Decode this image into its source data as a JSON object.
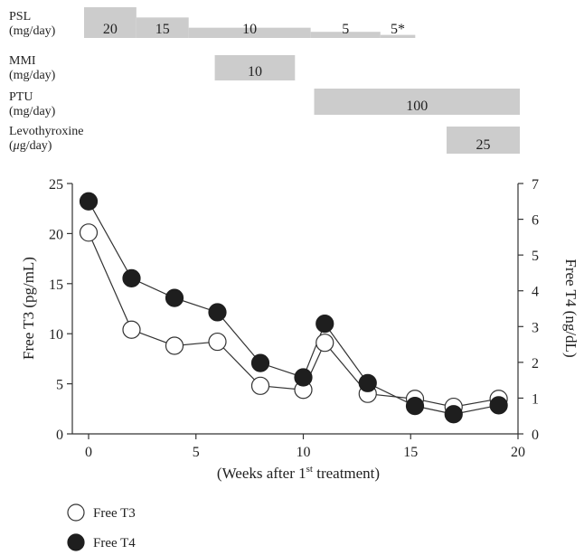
{
  "treatments": [
    {
      "name_line1": "PSL",
      "name_line2": "(mg/day)",
      "segments": [
        {
          "start": 0,
          "end": 3,
          "level": 3,
          "dose": "20"
        },
        {
          "start": 3,
          "end": 6,
          "level": 2,
          "dose": "15"
        },
        {
          "start": 6,
          "end": 13,
          "level": 1,
          "dose": "10"
        },
        {
          "start": 13,
          "end": 17,
          "level": 0.6,
          "dose": "5"
        },
        {
          "start": 17,
          "end": 19,
          "level": 0.3,
          "dose": "5*"
        }
      ]
    },
    {
      "name_line1": "MMI",
      "name_line2": "(mg/day)",
      "segments": [
        {
          "start": 7.5,
          "end": 12.1,
          "level": 1,
          "dose": "10"
        }
      ]
    },
    {
      "name_line1": "PTU",
      "name_line2": "(mg/day)",
      "segments": [
        {
          "start": 13.2,
          "end": 25,
          "level": 1,
          "dose": "100"
        }
      ]
    },
    {
      "name_line1": "Levothyroxine",
      "name_line2_prefix": "(",
      "name_line2_mu": "μ",
      "name_line2_suffix": "g/day)",
      "segments": [
        {
          "start": 20.8,
          "end": 25,
          "level": 1,
          "dose": "25"
        }
      ]
    }
  ],
  "chart_data": {
    "type": "line",
    "x_axis": {
      "label_prefix": "(Weeks after 1",
      "label_sup": "st",
      "label_suffix": " treatment)",
      "range": [
        0,
        20
      ],
      "ticks": [
        "0",
        "5",
        "10",
        "15",
        "20"
      ]
    },
    "y_left": {
      "label": "Free T3 (pg/mL)",
      "range": [
        0,
        25
      ],
      "ticks": [
        "0",
        "5",
        "10",
        "15",
        "20",
        "25"
      ]
    },
    "y_right": {
      "label": "Free T4 (ng/dL)",
      "range": [
        0,
        7
      ],
      "ticks": [
        "0",
        "1",
        "2",
        "3",
        "4",
        "5",
        "6",
        "7"
      ]
    },
    "series": [
      {
        "name": "Free T3",
        "axis": "left",
        "marker": "open-circle",
        "x": [
          0,
          2,
          4,
          6,
          8,
          10,
          11,
          13,
          15.2,
          17,
          19.1
        ],
        "y": [
          20.1,
          10.4,
          8.8,
          9.2,
          4.8,
          4.4,
          9.1,
          4.0,
          3.5,
          2.7,
          3.5
        ]
      },
      {
        "name": "Free T4",
        "axis": "right",
        "marker": "filled-circle",
        "x": [
          0,
          2,
          4,
          6,
          8,
          10,
          11,
          13,
          15.2,
          17,
          19.1
        ],
        "y": [
          6.5,
          4.35,
          3.8,
          3.4,
          1.98,
          1.58,
          3.08,
          1.42,
          0.78,
          0.55,
          0.8
        ]
      }
    ]
  },
  "legend": [
    {
      "label": "Free T3",
      "marker": "open-circle"
    },
    {
      "label": "Free T4",
      "marker": "filled-circle"
    }
  ],
  "colors": {
    "bar": "#cccccc",
    "line": "#333333",
    "open_fill": "#ffffff",
    "filled": "#1e1e1e"
  }
}
